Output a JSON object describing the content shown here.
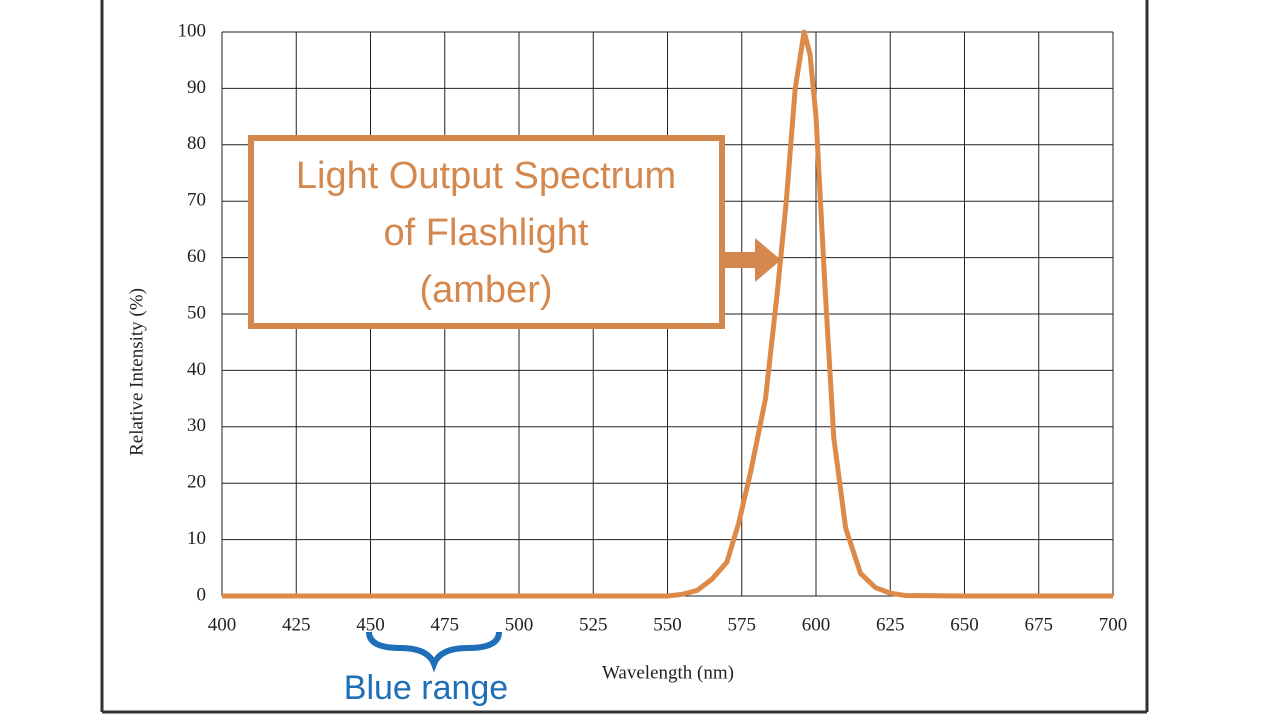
{
  "chart_data": {
    "type": "line",
    "xlabel": "Wavelength  (nm)",
    "ylabel": "Relative Intensity  (%)",
    "x": [
      400,
      450,
      500,
      550,
      555,
      560,
      565,
      570,
      574,
      578,
      583,
      587,
      590,
      593,
      596,
      598,
      600,
      603,
      606,
      610,
      615,
      620,
      625,
      630,
      650,
      700
    ],
    "values": [
      0,
      0,
      0,
      0,
      0.3,
      1,
      3,
      6,
      13,
      22,
      35,
      54,
      70,
      90,
      100,
      96,
      85,
      55,
      28,
      12,
      4,
      1.5,
      0.5,
      0.1,
      0,
      0
    ],
    "color": "#dd8a48",
    "xlim": [
      400,
      700
    ],
    "ylim": [
      0,
      100
    ],
    "xticks": [
      400,
      425,
      450,
      475,
      500,
      525,
      550,
      575,
      600,
      625,
      650,
      675,
      700
    ],
    "yticks": [
      0,
      10,
      20,
      30,
      40,
      50,
      60,
      70,
      80,
      90,
      100
    ],
    "grid": true,
    "annotation": [
      "Light Output Spectrum",
      "of Flashlight",
      "(amber)"
    ],
    "range_label": "Blue range"
  }
}
